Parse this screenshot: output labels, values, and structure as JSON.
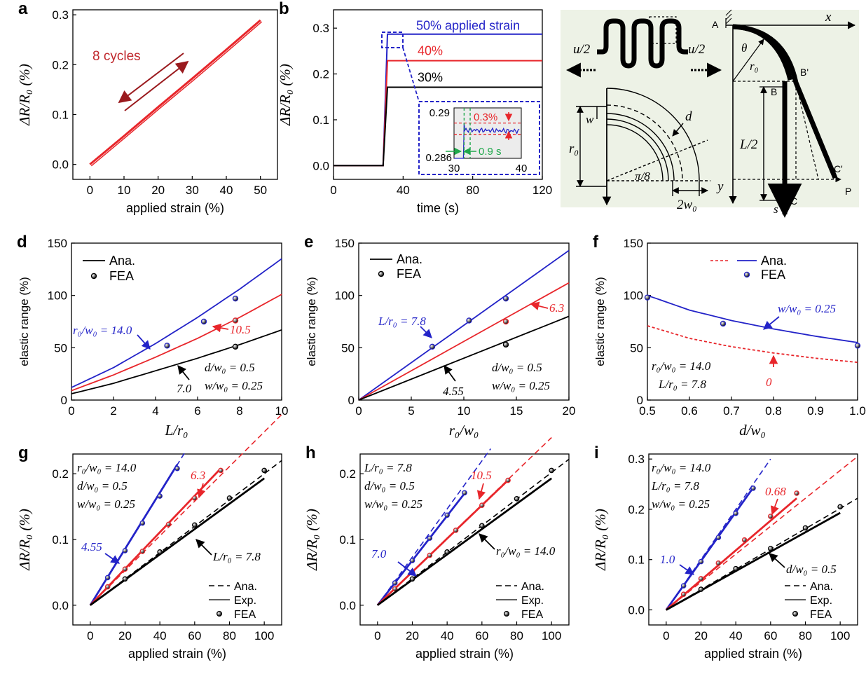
{
  "chart_data": [
    {
      "panel": "a",
      "type": "line",
      "xlabel": "applied strain (%)",
      "ylabel": "ΔR/R₀ (%)",
      "xlim": [
        -5,
        55
      ],
      "ylim": [
        -0.03,
        0.31
      ],
      "xticks": [
        0,
        10,
        20,
        30,
        40,
        50
      ],
      "yticks": [
        0.0,
        0.1,
        0.2,
        0.3
      ],
      "annotations": [
        {
          "text": "8 cycles",
          "color": "#c0282d"
        }
      ],
      "series": [
        {
          "color": "#e8262b",
          "x": [
            0,
            10,
            20,
            30,
            40,
            50
          ],
          "y": [
            0.0,
            0.057,
            0.115,
            0.172,
            0.23,
            0.289
          ]
        }
      ]
    },
    {
      "panel": "b",
      "type": "line",
      "xlabel": "time (s)",
      "ylabel": "ΔR/R₀ (%)",
      "xlim": [
        0,
        120
      ],
      "ylim": [
        -0.03,
        0.34
      ],
      "xticks": [
        0,
        40,
        80,
        120
      ],
      "yticks": [
        0.0,
        0.1,
        0.2,
        0.3
      ],
      "series": [
        {
          "name": "50% applied strain",
          "color": "#2323c8",
          "x": [
            0,
            28.5,
            31,
            120
          ],
          "y": [
            0,
            0,
            0.287,
            0.287
          ]
        },
        {
          "name": "40%",
          "color": "#e8262b",
          "x": [
            0,
            28.5,
            31,
            120
          ],
          "y": [
            0,
            0,
            0.229,
            0.229
          ]
        },
        {
          "name": "30%",
          "color": "#000000",
          "x": [
            0,
            28.5,
            31,
            120
          ],
          "y": [
            0,
            0,
            0.171,
            0.171
          ]
        }
      ],
      "inset": {
        "xlim": [
          30,
          40
        ],
        "ylim": [
          0.286,
          0.29
        ],
        "xticks": [
          30,
          40
        ],
        "yticks": [
          "0.29",
          "0.286"
        ],
        "annotations": [
          {
            "text": "0.3%",
            "color": "#e8262b"
          },
          {
            "text": "0.9 s",
            "color": "#20a84c"
          }
        ]
      }
    },
    {
      "panel": "c",
      "type": "diagram",
      "labels": [
        "u/2",
        "u/2",
        "w",
        "d",
        "r₀",
        "π/8",
        "2w₀",
        "A",
        "x",
        "θ",
        "r₀",
        "B'",
        "B",
        "L/2",
        "C'",
        "P",
        "C",
        "y",
        "s"
      ]
    },
    {
      "panel": "d",
      "type": "line",
      "xlabel": "L/r₀",
      "ylabel": "elastic range (%)",
      "xlim": [
        0,
        10
      ],
      "ylim": [
        0,
        150
      ],
      "xticks": [
        0,
        2,
        4,
        6,
        8,
        10
      ],
      "yticks": [
        0,
        50,
        100,
        150
      ],
      "legend": [
        {
          "label": "Ana.",
          "style": "line"
        },
        {
          "label": "FEA",
          "style": "dot"
        }
      ],
      "annotations": [
        "r₀/w₀ = 14.0",
        "10.5",
        "7.0",
        "d/w₀ = 0.5",
        "w/w₀ = 0.25"
      ],
      "series": [
        {
          "label": "14.0",
          "color": "#2323c8",
          "x": [
            0,
            2,
            4,
            6,
            8,
            10
          ],
          "y": [
            12,
            31,
            54,
            79,
            106,
            135
          ],
          "fea_x": [
            4.55,
            6.3,
            7.8
          ],
          "fea_y": [
            52,
            75,
            97
          ]
        },
        {
          "label": "10.5",
          "color": "#e8262b",
          "x": [
            0,
            2,
            4,
            6,
            8,
            10
          ],
          "y": [
            9,
            24,
            41,
            59,
            79,
            101
          ],
          "fea_x": [
            7.8
          ],
          "fea_y": [
            76
          ]
        },
        {
          "label": "7.0",
          "color": "#000000",
          "x": [
            0,
            2,
            4,
            6,
            8,
            10
          ],
          "y": [
            6,
            16,
            28,
            40,
            53,
            67
          ],
          "fea_x": [
            7.8
          ],
          "fea_y": [
            51
          ]
        }
      ]
    },
    {
      "panel": "e",
      "type": "line",
      "xlabel": "r₀/w₀",
      "ylabel": "elastic range (%)",
      "xlim": [
        0,
        20
      ],
      "ylim": [
        0,
        150
      ],
      "xticks": [
        0,
        5,
        10,
        15,
        20
      ],
      "yticks": [
        0,
        50,
        100,
        150
      ],
      "legend": [
        {
          "label": "Ana.",
          "style": "line"
        },
        {
          "label": "FEA",
          "style": "dot"
        }
      ],
      "annotations": [
        "L/r₀ = 7.8",
        "6.3",
        "4.55",
        "d/w₀ = 0.5",
        "w/w₀ = 0.25"
      ],
      "series": [
        {
          "label": "7.8",
          "color": "#2323c8",
          "x": [
            0,
            20
          ],
          "y": [
            0,
            143
          ],
          "fea_x": [
            7.0,
            10.5,
            14.0
          ],
          "fea_y": [
            51,
            76,
            97
          ]
        },
        {
          "label": "6.3",
          "color": "#e8262b",
          "x": [
            0,
            20
          ],
          "y": [
            0,
            112
          ],
          "fea_x": [
            14.0
          ],
          "fea_y": [
            75
          ]
        },
        {
          "label": "4.55",
          "color": "#000000",
          "x": [
            0,
            20
          ],
          "y": [
            0,
            80
          ],
          "fea_x": [
            14.0
          ],
          "fea_y": [
            53
          ]
        }
      ]
    },
    {
      "panel": "f",
      "type": "line",
      "xlabel": "d/w₀",
      "ylabel": "elastic range (%)",
      "xlim": [
        0.5,
        1.0
      ],
      "ylim": [
        0,
        150
      ],
      "xticks": [
        0.5,
        0.6,
        0.7,
        0.8,
        0.9,
        1.0
      ],
      "yticks": [
        0,
        50,
        100,
        150
      ],
      "legend": [
        {
          "label": "Ana.",
          "style": "line"
        },
        {
          "label": "FEA",
          "style": "dot"
        }
      ],
      "annotations": [
        "w/w₀ = 0.25",
        "0",
        "r₀/w₀ = 14.0",
        "L/r₀ = 7.8"
      ],
      "series": [
        {
          "label": "0.25",
          "color": "#2323c8",
          "dash": false,
          "x": [
            0.5,
            0.6,
            0.7,
            0.8,
            0.9,
            1.0
          ],
          "y": [
            100,
            86,
            76,
            68,
            61,
            55
          ],
          "fea_x": [
            0.5,
            0.68,
            1.0
          ],
          "fea_y": [
            98,
            73,
            52
          ]
        },
        {
          "label": "0",
          "color": "#e8262b",
          "dash": true,
          "x": [
            0.5,
            0.6,
            0.7,
            0.8,
            0.9,
            1.0
          ],
          "y": [
            71,
            59,
            51,
            45,
            40,
            36
          ],
          "fea_x": [],
          "fea_y": []
        }
      ]
    },
    {
      "panel": "g",
      "type": "line",
      "xlabel": "applied strain (%)",
      "ylabel": "ΔR/R₀ (%)",
      "xlim": [
        -10,
        110
      ],
      "ylim": [
        -0.03,
        0.23
      ],
      "xticks": [
        0,
        20,
        40,
        60,
        80,
        100
      ],
      "yticks": [
        0.0,
        0.1,
        0.2
      ],
      "legend": [
        {
          "label": "Ana.",
          "style": "dash"
        },
        {
          "label": "Exp.",
          "style": "line"
        },
        {
          "label": "FEA",
          "style": "dot"
        }
      ],
      "annotations": [
        "r₀/w₀ = 14.0",
        "d/w₀ = 0.5",
        "w/w₀ = 0.25",
        "4.55",
        "6.3",
        "L/r₀ = 7.8"
      ],
      "series": [
        {
          "label": "4.55",
          "color": "#2323c8",
          "ana": [
            0,
            0,
            55,
            0.235
          ],
          "exp": [
            0,
            0,
            50,
            0.214
          ],
          "fea_x": [
            10,
            20,
            30,
            40,
            50
          ],
          "fea_y": [
            0.042,
            0.083,
            0.125,
            0.166,
            0.208
          ]
        },
        {
          "label": "6.3",
          "color": "#e8262b",
          "ana": [
            0,
            0,
            110,
            0.29
          ],
          "exp": [
            0,
            0,
            75,
            0.208
          ],
          "fea_x": [
            10,
            20,
            30,
            45,
            60,
            75
          ],
          "fea_y": [
            0.028,
            0.055,
            0.082,
            0.123,
            0.163,
            0.205
          ]
        },
        {
          "label": "7.8",
          "color": "#000000",
          "ana": [
            0,
            0,
            110,
            0.22
          ],
          "exp": [
            0,
            0,
            100,
            0.193
          ],
          "fea_x": [
            20,
            40,
            60,
            80,
            100
          ],
          "fea_y": [
            0.04,
            0.081,
            0.122,
            0.163,
            0.205
          ]
        }
      ]
    },
    {
      "panel": "h",
      "type": "line",
      "xlabel": "applied strain (%)",
      "ylabel": "ΔR/R₀ (%)",
      "xlim": [
        -10,
        110
      ],
      "ylim": [
        -0.03,
        0.23
      ],
      "xticks": [
        0,
        20,
        40,
        60,
        80,
        100
      ],
      "yticks": [
        0.0,
        0.1,
        0.2
      ],
      "legend": [
        {
          "label": "Ana.",
          "style": "dash"
        },
        {
          "label": "Exp.",
          "style": "line"
        },
        {
          "label": "FEA",
          "style": "dot"
        }
      ],
      "annotations": [
        "L/r₀ = 7.8",
        "d/w₀ = 0.5",
        "w/w₀ = 0.25",
        "7.0",
        "10.5",
        "r₀/w₀ = 14.0"
      ],
      "series": [
        {
          "label": "7.0",
          "color": "#2323c8",
          "ana": [
            0,
            0,
            65,
            0.238
          ],
          "exp": [
            0,
            0,
            50,
            0.17
          ],
          "fea_x": [
            10,
            20,
            30,
            40,
            50
          ],
          "fea_y": [
            0.034,
            0.068,
            0.102,
            0.137,
            0.171
          ]
        },
        {
          "label": "10.5",
          "color": "#e8262b",
          "ana": [
            0,
            0,
            100,
            0.255
          ],
          "exp": [
            0,
            0,
            75,
            0.19
          ],
          "fea_x": [
            10,
            20,
            30,
            45,
            60,
            75
          ],
          "fea_y": [
            0.025,
            0.05,
            0.076,
            0.114,
            0.152,
            0.19
          ]
        },
        {
          "label": "14.0",
          "color": "#000000",
          "ana": [
            0,
            0,
            110,
            0.222
          ],
          "exp": [
            0,
            0,
            100,
            0.193
          ],
          "fea_x": [
            20,
            40,
            60,
            80,
            100
          ],
          "fea_y": [
            0.04,
            0.081,
            0.121,
            0.162,
            0.205
          ]
        }
      ]
    },
    {
      "panel": "i",
      "type": "line",
      "xlabel": "applied strain (%)",
      "ylabel": "ΔR/R₀ (%)",
      "xlim": [
        -10,
        110
      ],
      "ylim": [
        -0.03,
        0.31
      ],
      "xticks": [
        0,
        20,
        40,
        60,
        80,
        100
      ],
      "yticks": [
        0.0,
        0.1,
        0.2,
        0.3
      ],
      "legend": [
        {
          "label": "Ana.",
          "style": "dash"
        },
        {
          "label": "Exp.",
          "style": "line"
        },
        {
          "label": "FEA",
          "style": "dot"
        }
      ],
      "annotations": [
        "r₀/w₀ = 14.0",
        "L/r₀ = 7.8",
        "w/w₀ = 0.25",
        "1.0",
        "0.68",
        "d/w₀ = 0.5"
      ],
      "series": [
        {
          "label": "1.0",
          "color": "#2323c8",
          "ana": [
            0,
            0,
            60,
            0.3
          ],
          "exp": [
            0,
            0,
            50,
            0.243
          ],
          "fea_x": [
            10,
            20,
            30,
            40,
            50
          ],
          "fea_y": [
            0.048,
            0.096,
            0.144,
            0.192,
            0.242
          ]
        },
        {
          "label": "0.68",
          "color": "#e8262b",
          "ana": [
            0,
            0,
            110,
            0.305
          ],
          "exp": [
            0,
            0,
            75,
            0.222
          ],
          "fea_x": [
            10,
            20,
            30,
            45,
            60,
            75
          ],
          "fea_y": [
            0.031,
            0.062,
            0.093,
            0.139,
            0.186,
            0.232
          ]
        },
        {
          "label": "0.5",
          "color": "#000000",
          "ana": [
            0,
            0,
            110,
            0.222
          ],
          "exp": [
            0,
            0,
            100,
            0.193
          ],
          "fea_x": [
            20,
            40,
            60,
            80,
            100
          ],
          "fea_y": [
            0.041,
            0.082,
            0.122,
            0.163,
            0.205
          ]
        }
      ]
    }
  ]
}
